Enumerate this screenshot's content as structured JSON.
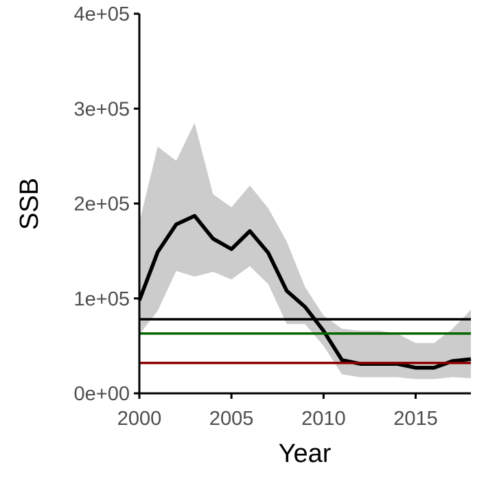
{
  "chart_data": {
    "type": "line",
    "title": "",
    "xlabel": "Year",
    "ylabel": "SSB",
    "xlim": [
      2000,
      2018
    ],
    "ylim": [
      0,
      400000
    ],
    "grid": false,
    "x_ticks": [
      2000,
      2005,
      2010,
      2015
    ],
    "x_tick_labels": [
      "2000",
      "2005",
      "2010",
      "2015"
    ],
    "y_ticks": [
      0,
      100000,
      200000,
      300000,
      400000
    ],
    "y_tick_labels": [
      "0e+00",
      "1e+05",
      "2e+05",
      "3e+05",
      "4e+05"
    ],
    "x": [
      2000,
      2001,
      2002,
      2003,
      2004,
      2005,
      2006,
      2007,
      2008,
      2009,
      2010,
      2011,
      2012,
      2013,
      2014,
      2015,
      2016,
      2017,
      2018
    ],
    "series": [
      {
        "type": "line",
        "color": "#000000",
        "values": [
          98000,
          149000,
          178000,
          187000,
          163000,
          152000,
          171000,
          148000,
          108000,
          91000,
          66000,
          35000,
          31000,
          31000,
          31000,
          27000,
          27000,
          34000,
          36000
        ]
      }
    ],
    "band": {
      "color": "#cccccc",
      "upper": [
        180000,
        260000,
        245000,
        285000,
        210000,
        196000,
        219000,
        195000,
        160000,
        112000,
        82000,
        68000,
        66000,
        66000,
        63000,
        53000,
        53000,
        68000,
        88000
      ],
      "lower": [
        62000,
        87000,
        129000,
        123000,
        128000,
        120000,
        134000,
        115000,
        73000,
        73000,
        50000,
        20000,
        17000,
        17000,
        17000,
        15000,
        15000,
        17000,
        16000
      ]
    },
    "reference_lines": [
      {
        "color": "#000000",
        "value": 78000
      },
      {
        "color": "#006400",
        "value": 63000
      },
      {
        "color": "#8b0000",
        "value": 32000
      }
    ]
  }
}
